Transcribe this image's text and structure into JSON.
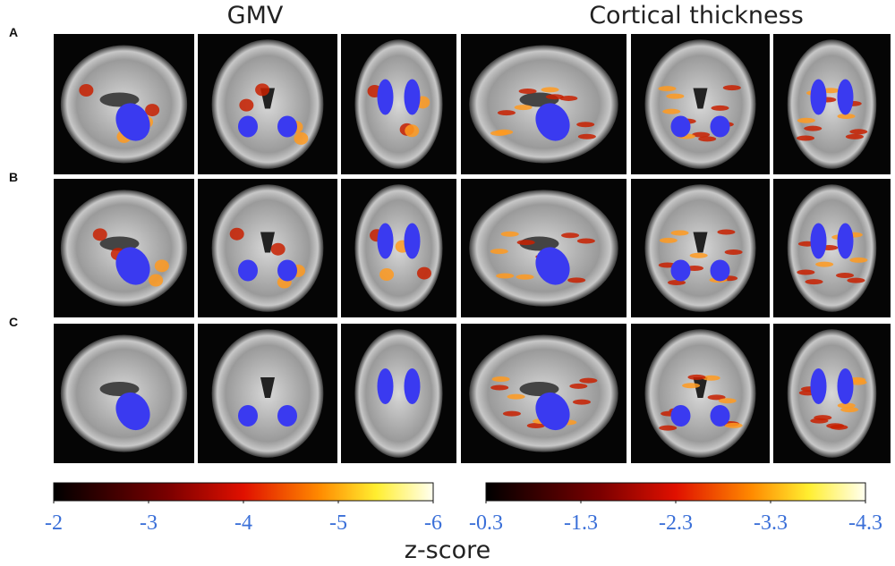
{
  "header": {
    "titles": [
      "GMV",
      "Cortical thickness"
    ]
  },
  "rows": [
    "A",
    "B",
    "C"
  ],
  "colorbars": [
    {
      "ticks": [
        -2,
        -3,
        -4,
        -5,
        -6
      ]
    },
    {
      "ticks": [
        -0.3,
        -1.3,
        -2.3,
        -3.3,
        -4.3
      ]
    }
  ],
  "axis_label": "z-score"
}
